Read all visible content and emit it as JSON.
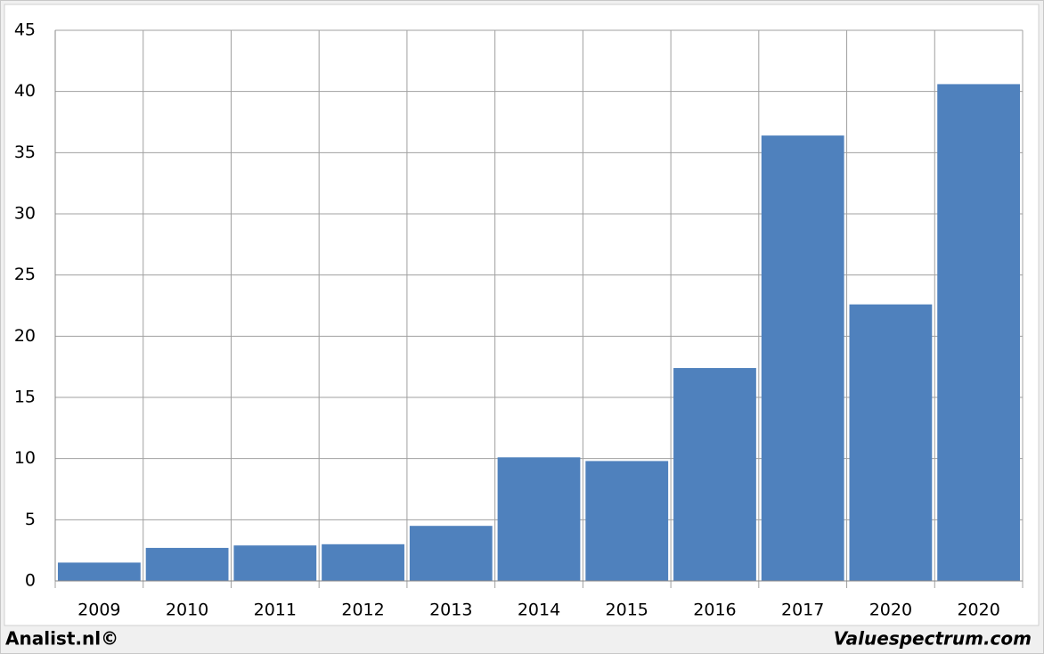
{
  "chart_data": {
    "type": "bar",
    "categories": [
      "2009",
      "2010",
      "2011",
      "2012",
      "2013",
      "2014",
      "2015",
      "2016",
      "2017",
      "2020",
      "2020"
    ],
    "values": [
      1.5,
      2.7,
      2.9,
      3.0,
      4.5,
      10.1,
      9.8,
      17.4,
      36.4,
      22.6,
      40.6
    ],
    "color": "#4f81bd",
    "ylim": [
      0,
      45
    ],
    "yticks": [
      0,
      5,
      10,
      15,
      20,
      25,
      30,
      35,
      40,
      45
    ],
    "grid": true
  },
  "footer": {
    "left": "Analist.nl©",
    "right": "Valuespectrum.com"
  }
}
